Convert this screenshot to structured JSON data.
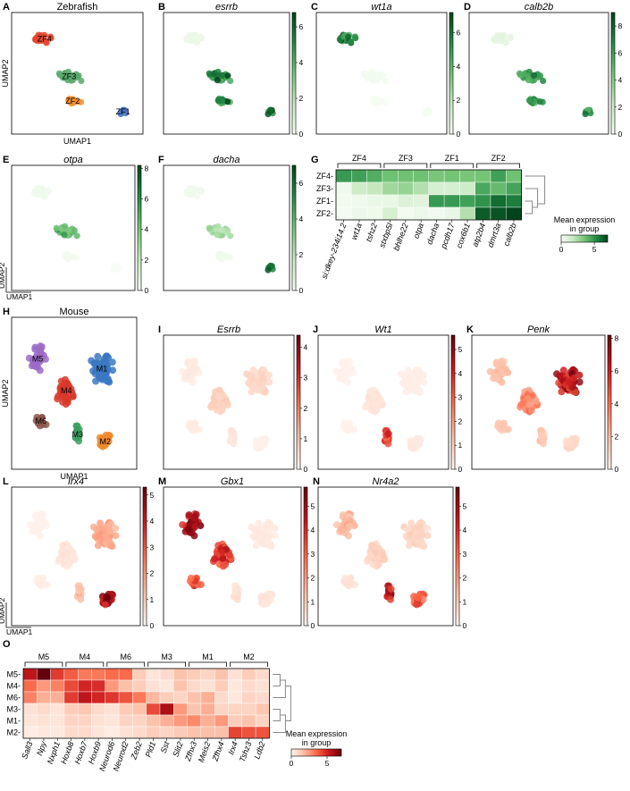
{
  "figure": {
    "panels": [
      {
        "letter": "A",
        "title": "Zebrafish",
        "italic": false,
        "xlabel": "UMAP1",
        "ylabel": "UMAP2"
      },
      {
        "letter": "B",
        "title": "esrrb",
        "italic": true,
        "ticks": [
          "0",
          "2",
          "4",
          "6"
        ]
      },
      {
        "letter": "C",
        "title": "wt1a",
        "italic": true,
        "ticks": [
          "0",
          "2",
          "4",
          "6"
        ]
      },
      {
        "letter": "D",
        "title": "calb2b",
        "italic": true,
        "ticks": [
          "0",
          "2",
          "4",
          "6",
          "8"
        ]
      },
      {
        "letter": "E",
        "title": "otpa",
        "italic": true,
        "ticks": [
          "0",
          "2",
          "4",
          "6",
          "8"
        ],
        "xlabel": "UMAP1",
        "ylabel": "UMAP2"
      },
      {
        "letter": "F",
        "title": "dacha",
        "italic": true,
        "ticks": [
          "0",
          "2",
          "4",
          "6"
        ]
      },
      {
        "letter": "G",
        "title": "",
        "italic": false
      },
      {
        "letter": "H",
        "title": "Mouse",
        "italic": false,
        "xlabel": "UMAP1",
        "ylabel": "UMAP2"
      },
      {
        "letter": "I",
        "title": "Esrrb",
        "italic": true,
        "ticks": [
          "0",
          "1",
          "2",
          "3",
          "4"
        ]
      },
      {
        "letter": "J",
        "title": "Wt1",
        "italic": true,
        "ticks": [
          "0",
          "1",
          "2",
          "3",
          "4",
          "5"
        ]
      },
      {
        "letter": "K",
        "title": "Penk",
        "italic": true,
        "ticks": [
          "0",
          "2",
          "4",
          "6",
          "8"
        ]
      },
      {
        "letter": "L",
        "title": "Irx4",
        "italic": true,
        "ticks": [
          "0",
          "1",
          "2",
          "3",
          "4",
          "5"
        ],
        "xlabel": "UMAP1",
        "ylabel": "UMAP2"
      },
      {
        "letter": "M",
        "title": "Gbx1",
        "italic": true,
        "ticks": [
          "0",
          "1",
          "2",
          "3",
          "4",
          "5"
        ]
      },
      {
        "letter": "N",
        "title": "Nr4a2",
        "italic": true,
        "ticks": [
          "0",
          "1",
          "2",
          "3",
          "4",
          "5"
        ]
      },
      {
        "letter": "O",
        "title": "",
        "italic": false
      }
    ]
  },
  "colors": {
    "green_cmap": [
      "#f7fcf5",
      "#c7e9c0",
      "#74c476",
      "#238b45",
      "#00441b"
    ],
    "red_cmap": [
      "#fff5f0",
      "#fcbba1",
      "#fb6a4a",
      "#cb181d",
      "#67000d"
    ],
    "ZF1": "#4472c4",
    "ZF2": "#f28e2b",
    "ZF3": "#59a86b",
    "ZF4": "#e0452b",
    "M1": "#3b78c2",
    "M2": "#f0882a",
    "M3": "#3a9e5f",
    "M4": "#d83a2c",
    "M5": "#9b6bc7",
    "M6": "#8c564b"
  },
  "chart_data": [
    {
      "panel": "A",
      "type": "scatter",
      "title": "Zebrafish",
      "xlabel": "UMAP1",
      "ylabel": "UMAP2",
      "clusters": [
        {
          "name": "ZF4",
          "center": [
            0.22,
            0.82
          ],
          "spread": [
            0.13,
            0.08
          ],
          "n": 18
        },
        {
          "name": "ZF3",
          "center": [
            0.43,
            0.47
          ],
          "spread": [
            0.17,
            0.06
          ],
          "n": 24
        },
        {
          "name": "ZF2",
          "center": [
            0.46,
            0.24
          ],
          "spread": [
            0.11,
            0.05
          ],
          "n": 14
        },
        {
          "name": "ZF1",
          "center": [
            0.89,
            0.14
          ],
          "spread": [
            0.04,
            0.04
          ],
          "n": 7
        }
      ]
    },
    {
      "panel": "B",
      "type": "scatter",
      "gene": "esrrb",
      "colorbar_range": [
        0,
        6.8
      ],
      "expression": {
        "ZF4": 0.4,
        "ZF3": 5.4,
        "ZF2": 5.0,
        "ZF1": 6.0
      }
    },
    {
      "panel": "C",
      "type": "scatter",
      "gene": "wt1a",
      "colorbar_range": [
        0,
        7.2
      ],
      "expression": {
        "ZF4": 5.6,
        "ZF3": 0.2,
        "ZF2": 0.1,
        "ZF1": 0.1
      }
    },
    {
      "panel": "D",
      "type": "scatter",
      "gene": "calb2b",
      "colorbar_range": [
        0,
        9.0
      ],
      "expression": {
        "ZF4": 0.8,
        "ZF3": 6.0,
        "ZF2": 6.3,
        "ZF1": 6.5
      }
    },
    {
      "panel": "E",
      "type": "scatter",
      "gene": "otpa",
      "colorbar_range": [
        0,
        8.2
      ],
      "expression": {
        "ZF4": 0.3,
        "ZF3": 4.5,
        "ZF2": 0.2,
        "ZF1": 0.1
      }
    },
    {
      "panel": "F",
      "type": "scatter",
      "gene": "dacha",
      "colorbar_range": [
        0,
        7.0
      ],
      "expression": {
        "ZF4": 0.3,
        "ZF3": 2.5,
        "ZF2": 0.3,
        "ZF1": 5.6
      }
    },
    {
      "panel": "G",
      "type": "heatmap",
      "cmap": "green",
      "rows": [
        "ZF4",
        "ZF3",
        "ZF1",
        "ZF2"
      ],
      "group_brackets": [
        {
          "label": "ZF4",
          "span": 3
        },
        {
          "label": "ZF3",
          "span": 3
        },
        {
          "label": "ZF1",
          "span": 3
        },
        {
          "label": "ZF2",
          "span": 3
        }
      ],
      "columns": [
        "si:dkey-234i14.2",
        "wt1a",
        "tshz2",
        "stxbp5l",
        "bhlhe22",
        "otpa",
        "dacha",
        "pcdh17",
        "cox6b1",
        "atp2b4",
        "dmrt3a",
        "calb2b"
      ],
      "values": [
        [
          4.8,
          4.6,
          4.2,
          3.6,
          3.6,
          3.6,
          3.4,
          3.5,
          3.4,
          3.5,
          4.6,
          3.6
        ],
        [
          0.3,
          1.5,
          1.8,
          2.6,
          2.8,
          2.2,
          1.2,
          1.2,
          1.5,
          4.4,
          3.8,
          4.5
        ],
        [
          0.2,
          0.3,
          0.5,
          0.5,
          1.0,
          0.8,
          4.8,
          4.8,
          4.6,
          5.0,
          6.0,
          5.6
        ],
        [
          0.1,
          0.4,
          0.3,
          1.2,
          0.2,
          0.4,
          0.2,
          0.5,
          2.2,
          6.4,
          6.6,
          7.0
        ]
      ],
      "colorbar": {
        "label": "Mean expression\nin group",
        "ticks": [
          "0",
          "5"
        ],
        "range": [
          0,
          7
        ]
      }
    },
    {
      "panel": "H",
      "type": "scatter",
      "title": "Mouse",
      "xlabel": "UMAP1",
      "ylabel": "UMAP2",
      "clusters": [
        {
          "name": "M1",
          "center": [
            0.75,
            0.68
          ],
          "spread": [
            0.14,
            0.16
          ],
          "n": 70
        },
        {
          "name": "M2",
          "center": [
            0.78,
            0.15
          ],
          "spread": [
            0.08,
            0.07
          ],
          "n": 22
        },
        {
          "name": "M3",
          "center": [
            0.53,
            0.2
          ],
          "spread": [
            0.05,
            0.08
          ],
          "n": 14
        },
        {
          "name": "M4",
          "center": [
            0.43,
            0.52
          ],
          "spread": [
            0.12,
            0.15
          ],
          "n": 42
        },
        {
          "name": "M5",
          "center": [
            0.17,
            0.75
          ],
          "spread": [
            0.1,
            0.12
          ],
          "n": 36
        },
        {
          "name": "M6",
          "center": [
            0.2,
            0.3
          ],
          "spread": [
            0.07,
            0.06
          ],
          "n": 12
        }
      ]
    },
    {
      "panel": "I",
      "type": "scatter",
      "gene": "Esrrb",
      "colorbar_range": [
        0,
        4.4
      ],
      "expression": {
        "M1": 0.6,
        "M2": 0.1,
        "M3": 0.3,
        "M4": 0.7,
        "M5": 0.2,
        "M6": 0.2
      }
    },
    {
      "panel": "J",
      "type": "scatter",
      "gene": "Wt1",
      "colorbar_range": [
        0,
        5.6
      ],
      "expression": {
        "M1": 0.2,
        "M2": 0.3,
        "M3": 3.8,
        "M4": 0.4,
        "M5": 0.1,
        "M6": 0.1
      }
    },
    {
      "panel": "K",
      "type": "scatter",
      "gene": "Penk",
      "colorbar_range": [
        0,
        8.2
      ],
      "expression": {
        "M1": 6.5,
        "M2": 1.0,
        "M3": 1.5,
        "M4": 3.5,
        "M5": 2.0,
        "M6": 1.5
      }
    },
    {
      "panel": "L",
      "type": "scatter",
      "gene": "Irx4",
      "colorbar_range": [
        0,
        5.3
      ],
      "expression": {
        "M1": 1.6,
        "M2": 4.2,
        "M3": 1.2,
        "M4": 0.4,
        "M5": 0.1,
        "M6": 0.2
      }
    },
    {
      "panel": "M",
      "type": "scatter",
      "gene": "Gbx1",
      "colorbar_range": [
        0,
        5.8
      ],
      "expression": {
        "M1": 0.3,
        "M2": 0.4,
        "M3": 0.5,
        "M4": 3.8,
        "M5": 4.8,
        "M6": 3.5
      }
    },
    {
      "panel": "N",
      "type": "scatter",
      "gene": "Nr4a2",
      "colorbar_range": [
        0,
        5.8
      ],
      "expression": {
        "M1": 0.8,
        "M2": 3.0,
        "M3": 4.6,
        "M4": 0.9,
        "M5": 1.5,
        "M6": 0.5
      }
    },
    {
      "panel": "O",
      "type": "heatmap",
      "cmap": "red",
      "rows": [
        "M5",
        "M4",
        "M6",
        "M3",
        "M1",
        "M2"
      ],
      "group_brackets": [
        {
          "label": "M5",
          "span": 3
        },
        {
          "label": "M4",
          "span": 3
        },
        {
          "label": "M6",
          "span": 3
        },
        {
          "label": "M3",
          "span": 3
        },
        {
          "label": "M1",
          "span": 3
        },
        {
          "label": "M2",
          "span": 3
        }
      ],
      "columns": [
        "Sall3",
        "Npy",
        "Nxph1",
        "Hoxb8",
        "Hoxb7",
        "Hoxb9",
        "Neurod6",
        "Neurod2",
        "Zeb2",
        "Pld1",
        "Sst",
        "Slit2",
        "Zfhx3",
        "Meis2",
        "Zfhx4",
        "Irx4",
        "Tshz3",
        "Ldb2"
      ],
      "values": [
        [
          5.5,
          7.0,
          4.5,
          3.8,
          3.2,
          3.2,
          3.5,
          3.5,
          1.2,
          0.5,
          0.8,
          1.5,
          1.2,
          1.0,
          1.5,
          0.6,
          1.2,
          0.8
        ],
        [
          3.5,
          2.5,
          3.0,
          4.2,
          5.0,
          4.8,
          2.5,
          1.6,
          1.2,
          0.6,
          0.4,
          1.5,
          0.8,
          0.6,
          1.2,
          0.4,
          0.8,
          0.6
        ],
        [
          3.0,
          2.0,
          2.0,
          4.5,
          5.5,
          5.0,
          4.6,
          4.0,
          3.2,
          1.8,
          1.2,
          1.0,
          1.5,
          2.0,
          0.8,
          0.4,
          1.0,
          0.8
        ],
        [
          0.6,
          0.8,
          0.5,
          1.2,
          1.4,
          0.8,
          0.6,
          1.3,
          1.5,
          4.2,
          5.8,
          2.5,
          1.5,
          2.0,
          1.0,
          1.0,
          1.0,
          1.4
        ],
        [
          0.5,
          0.6,
          0.5,
          1.0,
          1.0,
          0.6,
          0.5,
          1.0,
          1.0,
          1.5,
          2.0,
          2.5,
          2.8,
          2.0,
          2.5,
          1.2,
          1.5,
          1.0
        ],
        [
          0.3,
          0.4,
          0.4,
          0.8,
          0.8,
          0.5,
          0.3,
          0.6,
          0.8,
          1.2,
          1.0,
          1.3,
          1.5,
          1.6,
          1.6,
          4.3,
          4.0,
          4.0
        ]
      ],
      "colorbar": {
        "label": "Mean expression\nin group",
        "ticks": [
          "0",
          "5"
        ],
        "range": [
          0,
          7
        ]
      }
    }
  ]
}
